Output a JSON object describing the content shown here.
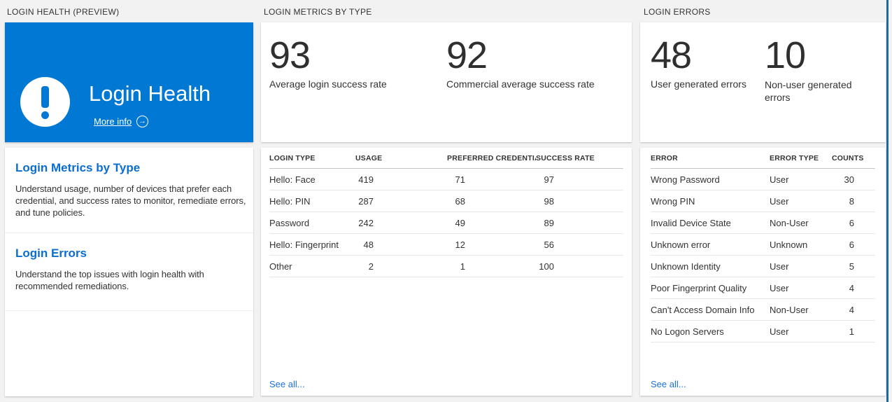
{
  "page": {
    "background_color": "#f2f2f2",
    "accent_blue": "#0078d4",
    "link_blue": "#0a6ed1",
    "edge_stripe_color": "#20699f"
  },
  "login_health": {
    "header": "LOGIN HEALTH (PREVIEW)",
    "tile": {
      "title": "Login Health",
      "more_info_label": "More info",
      "arrow_glyph": "→",
      "icon": "exclamation-icon"
    },
    "links": [
      {
        "title": "Login Metrics by Type",
        "description": "Understand usage, number of devices that prefer each credential, and success rates to monitor, remediate errors, and tune policies."
      },
      {
        "title": "Login Errors",
        "description": "Understand the top issues with login health with recommended remediations."
      }
    ]
  },
  "login_metrics": {
    "header": "LOGIN METRICS BY TYPE",
    "stats": [
      {
        "value": "93",
        "label": "Average login success rate"
      },
      {
        "value": "92",
        "label": "Commercial average success rate"
      }
    ],
    "table": {
      "columns": [
        "LOGIN TYPE",
        "USAGE",
        "PREFERRED CREDENTIAL",
        "SUCCESS RATE"
      ],
      "rows": [
        [
          "Hello: Face",
          "419",
          "71",
          "97"
        ],
        [
          "Hello: PIN",
          "287",
          "68",
          "98"
        ],
        [
          "Password",
          "242",
          "49",
          "89"
        ],
        [
          "Hello: Fingerprint",
          "48",
          "12",
          "56"
        ],
        [
          "Other",
          "2",
          "1",
          "100"
        ]
      ],
      "see_all_label": "See all..."
    }
  },
  "login_errors": {
    "header": "LOGIN ERRORS",
    "stats": [
      {
        "value": "48",
        "label": "User generated errors"
      },
      {
        "value": "10",
        "label": "Non-user generated errors"
      }
    ],
    "table": {
      "columns": [
        "ERROR",
        "ERROR TYPE",
        "COUNTS"
      ],
      "rows": [
        [
          "Wrong Password",
          "User",
          "30"
        ],
        [
          "Wrong PIN",
          "User",
          "8"
        ],
        [
          "Invalid Device State",
          "Non-User",
          "6"
        ],
        [
          "Unknown error",
          "Unknown",
          "6"
        ],
        [
          "Unknown Identity",
          "User",
          "5"
        ],
        [
          "Poor Fingerprint Quality",
          "User",
          "4"
        ],
        [
          "Can't Access Domain Info",
          "Non-User",
          "4"
        ],
        [
          "No Logon Servers",
          "User",
          "1"
        ]
      ],
      "see_all_label": "See all..."
    }
  }
}
